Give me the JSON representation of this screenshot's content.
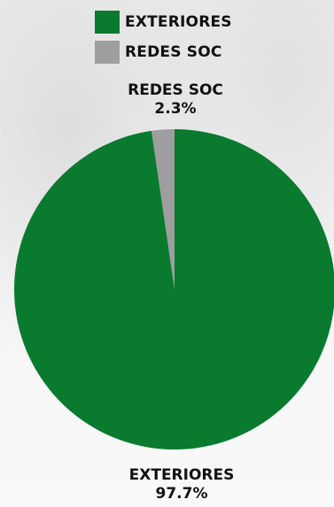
{
  "chart_data": {
    "type": "pie",
    "slices": [
      {
        "label": "EXTERIORES",
        "value": 97.7,
        "value_label": "97.7%",
        "color": "#0a7a2f"
      },
      {
        "label": "REDES SOC",
        "value": 2.3,
        "value_label": "2.3%",
        "color": "#9e9e9e"
      }
    ],
    "legend_position": "top"
  }
}
